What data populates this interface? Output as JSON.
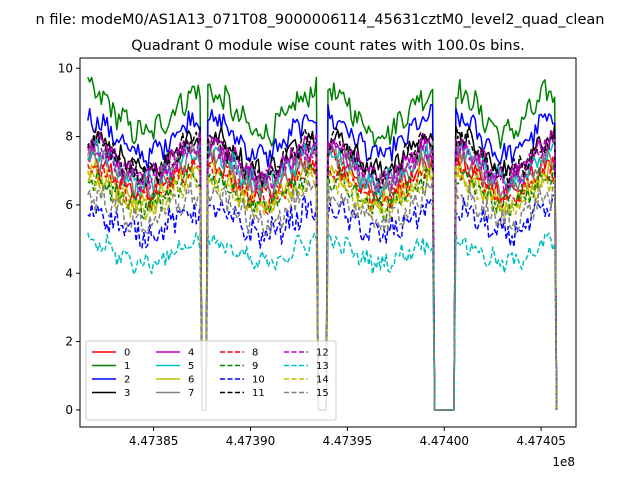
{
  "figure": {
    "suptitle": "n file: modeM0/AS1A13_071T08_9000006114_45631cztM0_level2_quad_clean",
    "title": "Quadrant 0 module wise count rates with 100.0s bins."
  },
  "chart_data": {
    "type": "line",
    "title": "Quadrant 0 module wise count rates with 100.0s bins.",
    "xlabel": "",
    "ylabel": "",
    "x_offset_label": "1e8",
    "xlim": [
      447381200,
      447406800
    ],
    "ylim": [
      -0.5,
      10.3
    ],
    "x_ticks": [
      447385000,
      447390000,
      447395000,
      447400000,
      447405000
    ],
    "x_tick_labels": [
      "4.47385",
      "4.47390",
      "4.47395",
      "4.47400",
      "4.47405"
    ],
    "y_ticks": [
      0,
      2,
      4,
      6,
      8,
      10
    ],
    "y_tick_labels": [
      "0",
      "2",
      "4",
      "6",
      "8",
      "10"
    ],
    "grid": false,
    "legend_placement": "lower-left",
    "legend_columns": 4,
    "bin_seconds": 100,
    "segments": [
      [
        447381600,
        447387400
      ],
      [
        447387800,
        447393400
      ],
      [
        447394000,
        447399400
      ],
      [
        447400600,
        447405700
      ]
    ],
    "gap_value": 0,
    "series": [
      {
        "name": "0",
        "color": "#ff0000",
        "dash": "solid",
        "mean": 6.8,
        "amplitude": 0.25
      },
      {
        "name": "1",
        "color": "#008000",
        "dash": "solid",
        "mean": 8.7,
        "amplitude": 0.35
      },
      {
        "name": "2",
        "color": "#0000ff",
        "dash": "solid",
        "mean": 8.0,
        "amplitude": 0.3
      },
      {
        "name": "3",
        "color": "#000000",
        "dash": "solid",
        "mean": 7.5,
        "amplitude": 0.3
      },
      {
        "name": "4",
        "color": "#bf00bf",
        "dash": "solid",
        "mean": 7.3,
        "amplitude": 0.3
      },
      {
        "name": "5",
        "color": "#00bfbf",
        "dash": "solid",
        "mean": 7.1,
        "amplitude": 0.3
      },
      {
        "name": "6",
        "color": "#bfbf00",
        "dash": "solid",
        "mean": 6.5,
        "amplitude": 0.3
      },
      {
        "name": "7",
        "color": "#808080",
        "dash": "solid",
        "mean": 7.0,
        "amplitude": 0.3
      },
      {
        "name": "8",
        "color": "#ff0000",
        "dash": "dashed",
        "mean": 6.6,
        "amplitude": 0.3
      },
      {
        "name": "9",
        "color": "#008000",
        "dash": "dashed",
        "mean": 6.4,
        "amplitude": 0.3
      },
      {
        "name": "10",
        "color": "#0000ff",
        "dash": "dashed",
        "mean": 5.5,
        "amplitude": 0.35
      },
      {
        "name": "11",
        "color": "#000000",
        "dash": "dashed",
        "mean": 7.4,
        "amplitude": 0.3
      },
      {
        "name": "12",
        "color": "#bf00bf",
        "dash": "dashed",
        "mean": 7.2,
        "amplitude": 0.3
      },
      {
        "name": "13",
        "color": "#00bfbf",
        "dash": "dashed",
        "mean": 4.6,
        "amplitude": 0.25
      },
      {
        "name": "14",
        "color": "#bfbf00",
        "dash": "dashed",
        "mean": 6.3,
        "amplitude": 0.3
      },
      {
        "name": "15",
        "color": "#808080",
        "dash": "dashed",
        "mean": 5.9,
        "amplitude": 0.35
      }
    ]
  }
}
